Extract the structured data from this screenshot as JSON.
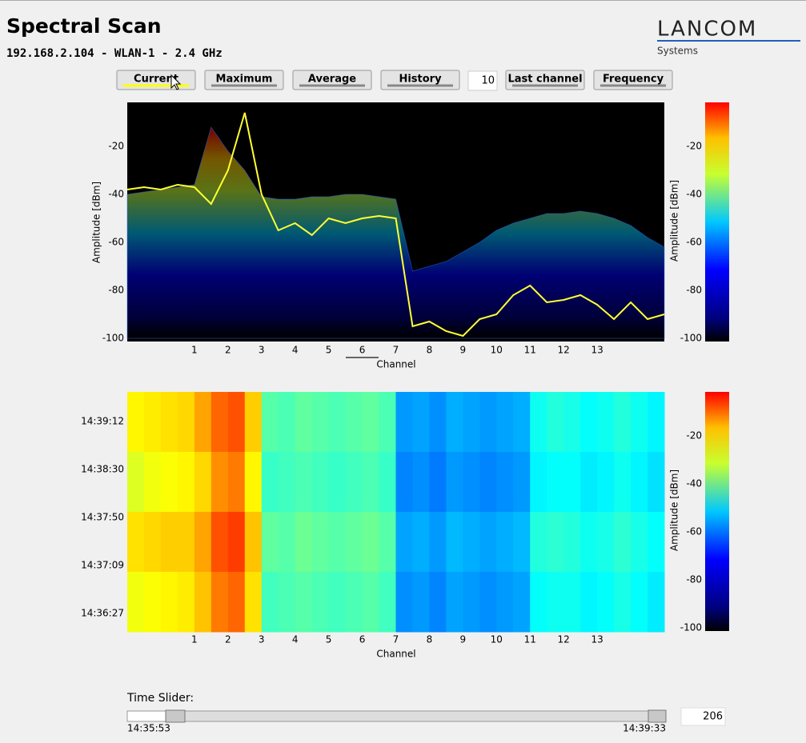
{
  "header": {
    "title": "Spectral Scan",
    "subtitle": "192.168.2.104 - WLAN-1 - 2.4 GHz"
  },
  "logo": {
    "name": "LANCOM",
    "sub": "Systems"
  },
  "toolbar": {
    "buttons": [
      "Current",
      "Maximum",
      "Average",
      "History",
      "Last channel",
      "Frequency"
    ],
    "history_count": 10
  },
  "chart_data": [
    {
      "type": "line",
      "ylabel": "Amplitude [dBm]",
      "xlabel": "Channel",
      "x": [
        -1,
        -0.5,
        0,
        0.5,
        1,
        1.5,
        2,
        2.5,
        3,
        3.5,
        4,
        4.5,
        5,
        5.5,
        6,
        6.5,
        7,
        7.5,
        8,
        8.5,
        9,
        9.5,
        10,
        10.5,
        11,
        11.5,
        12,
        12.5,
        13,
        13.5,
        14,
        14.5,
        15
      ],
      "series": [
        {
          "kind": "area",
          "color": "#3060e0",
          "values": [
            -40,
            -39,
            -38,
            -37,
            -36,
            -12,
            -22,
            -30,
            -41,
            -42,
            -42,
            -41,
            -41,
            -40,
            -40,
            -41,
            -42,
            -72,
            -70,
            -68,
            -64,
            -60,
            -55,
            -52,
            -50,
            -48,
            -48,
            -47,
            -48,
            -50,
            -53,
            -58,
            -62
          ]
        },
        {
          "kind": "line",
          "color": "#ffff33",
          "values": [
            -38,
            -37,
            -38,
            -36,
            -37,
            -44,
            -30,
            -6,
            -40,
            -55,
            -52,
            -57,
            -50,
            -52,
            -50,
            -49,
            -50,
            -95,
            -93,
            -97,
            -99,
            -92,
            -90,
            -82,
            -78,
            -85,
            -84,
            -82,
            -86,
            -92,
            -85,
            -92,
            -90
          ]
        }
      ],
      "xlim": [
        -1,
        15
      ],
      "xticks": [
        1,
        2,
        3,
        4,
        5,
        6,
        7,
        8,
        9,
        10,
        11,
        12,
        13
      ],
      "ylim": [
        -100,
        -2
      ],
      "yticks": [
        -100,
        -80,
        -60,
        -40,
        -20
      ],
      "colorbar": {
        "zlim": [
          -100,
          -2
        ],
        "ticks": [
          -100,
          -80,
          -60,
          -40,
          -20
        ],
        "label": "Amplitude [dBm]"
      }
    },
    {
      "type": "heatmap",
      "xlabel": "Channel",
      "xbins": [
        -1,
        -0.5,
        0,
        0.5,
        1,
        1.5,
        2,
        2.5,
        3,
        3.5,
        4,
        4.5,
        5,
        5.5,
        6,
        6.5,
        7,
        7.5,
        8,
        8.5,
        9,
        9.5,
        10,
        10.5,
        11,
        11.5,
        12,
        12.5,
        13,
        13.5,
        14,
        14.5,
        15
      ],
      "z": [
        [
          -38,
          -37,
          -36,
          -35,
          -30,
          -24,
          -22,
          -34,
          -55,
          -56,
          -54,
          -55,
          -56,
          -55,
          -54,
          -56,
          -73,
          -72,
          -74,
          -71,
          -72,
          -73,
          -72,
          -71,
          -62,
          -60,
          -61,
          -63,
          -62,
          -60,
          -62,
          -64
        ],
        [
          -42,
          -40,
          -39,
          -38,
          -35,
          -28,
          -26,
          -38,
          -58,
          -57,
          -56,
          -57,
          -58,
          -57,
          -56,
          -58,
          -75,
          -74,
          -76,
          -73,
          -74,
          -75,
          -74,
          -73,
          -64,
          -63,
          -63,
          -65,
          -64,
          -62,
          -64,
          -66
        ],
        [
          -36,
          -35,
          -34,
          -34,
          -30,
          -22,
          -20,
          -33,
          -54,
          -55,
          -53,
          -54,
          -55,
          -54,
          -53,
          -55,
          -72,
          -71,
          -73,
          -70,
          -71,
          -72,
          -71,
          -70,
          -60,
          -59,
          -60,
          -62,
          -61,
          -59,
          -61,
          -63
        ],
        [
          -40,
          -39,
          -38,
          -37,
          -33,
          -26,
          -24,
          -36,
          -57,
          -56,
          -55,
          -56,
          -57,
          -56,
          -55,
          -57,
          -74,
          -73,
          -75,
          -72,
          -73,
          -74,
          -73,
          -72,
          -63,
          -62,
          -62,
          -64,
          -63,
          -61,
          -63,
          -65
        ]
      ],
      "ylabels": [
        "14:39:12",
        "14:38:30",
        "14:37:50",
        "14:37:09",
        "14:36:27"
      ],
      "xlim": [
        -1,
        15
      ],
      "xticks": [
        1,
        2,
        3,
        4,
        5,
        6,
        7,
        8,
        9,
        10,
        11,
        12,
        13
      ],
      "colorbar": {
        "zlim": [
          -100,
          -2
        ],
        "ticks": [
          -100,
          -80,
          -60,
          -40,
          -20
        ],
        "label": "Amplitude [dBm]"
      }
    }
  ],
  "time_slider": {
    "label": "Time Slider:",
    "start": "14:35:53",
    "end": "14:39:33",
    "value": 206
  }
}
